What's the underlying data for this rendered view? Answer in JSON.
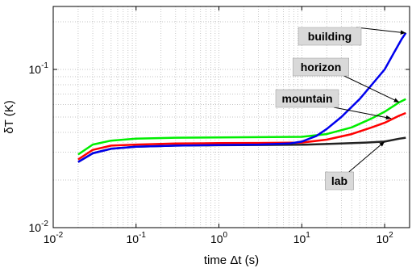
{
  "chart_data": {
    "type": "line",
    "xscale": "log",
    "yscale": "log",
    "xlim": [
      0.01,
      200
    ],
    "ylim": [
      0.01,
      0.25
    ],
    "grid": true,
    "xlabel": "time Δt (s)",
    "ylabel": "δT (K)",
    "x_ticks": [
      {
        "value": 0.01,
        "base": "10",
        "exp": "-2"
      },
      {
        "value": 0.1,
        "base": "10",
        "exp": "-1"
      },
      {
        "value": 1,
        "base": "10",
        "exp": "0"
      },
      {
        "value": 10,
        "base": "10",
        "exp": "1"
      },
      {
        "value": 100,
        "base": "10",
        "exp": "2"
      }
    ],
    "y_ticks": [
      {
        "value": 0.01,
        "base": "10",
        "exp": "-2"
      },
      {
        "value": 0.1,
        "base": "10",
        "exp": "-1"
      }
    ],
    "series": [
      {
        "name": "lab",
        "color": "#222222",
        "x": [
          0.02,
          0.03,
          0.05,
          0.1,
          0.3,
          1,
          3,
          10,
          30,
          60,
          100,
          150,
          180
        ],
        "y": [
          0.026,
          0.0295,
          0.0315,
          0.0325,
          0.033,
          0.0332,
          0.0333,
          0.0334,
          0.034,
          0.0345,
          0.035,
          0.0365,
          0.037
        ]
      },
      {
        "name": "mountain",
        "color": "#ff0000",
        "x": [
          0.02,
          0.03,
          0.05,
          0.1,
          0.3,
          1,
          3,
          10,
          20,
          40,
          70,
          100,
          150,
          180
        ],
        "y": [
          0.027,
          0.031,
          0.033,
          0.0335,
          0.034,
          0.0342,
          0.0343,
          0.0345,
          0.036,
          0.039,
          0.043,
          0.046,
          0.051,
          0.053
        ]
      },
      {
        "name": "horizon",
        "color": "#00ee00",
        "x": [
          0.02,
          0.03,
          0.05,
          0.1,
          0.3,
          1,
          3,
          10,
          20,
          40,
          70,
          100,
          150,
          180
        ],
        "y": [
          0.029,
          0.0335,
          0.0355,
          0.0365,
          0.037,
          0.0372,
          0.0373,
          0.0375,
          0.039,
          0.043,
          0.049,
          0.054,
          0.062,
          0.065
        ]
      },
      {
        "name": "building",
        "color": "#0000ee",
        "x": [
          0.02,
          0.03,
          0.05,
          0.1,
          0.3,
          1,
          3,
          7,
          10,
          15,
          20,
          30,
          50,
          70,
          100,
          130,
          160,
          180
        ],
        "y": [
          0.026,
          0.0295,
          0.0315,
          0.0325,
          0.033,
          0.0333,
          0.0335,
          0.034,
          0.035,
          0.038,
          0.042,
          0.05,
          0.065,
          0.08,
          0.1,
          0.128,
          0.155,
          0.17
        ]
      }
    ],
    "annotations": [
      {
        "text": "building",
        "series": "building",
        "x": 180,
        "y": 0.17
      },
      {
        "text": "horizon",
        "series": "horizon",
        "x": 150,
        "y": 0.062
      },
      {
        "text": "mountain",
        "series": "mountain",
        "x": 120,
        "y": 0.049
      },
      {
        "text": "lab",
        "series": "lab",
        "x": 100,
        "y": 0.035
      }
    ]
  }
}
